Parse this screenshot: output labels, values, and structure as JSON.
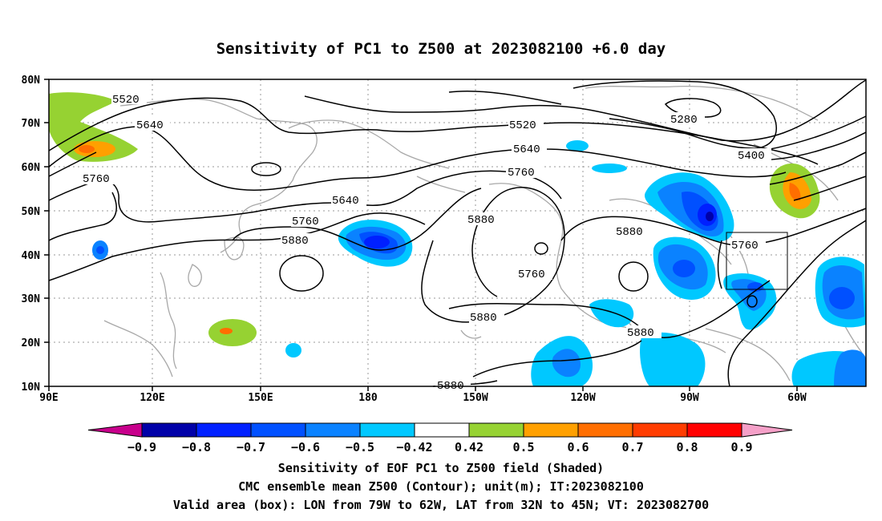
{
  "title": "Sensitivity of PC1 to Z500 at 2023082100 +6.0 day",
  "lat_labels": [
    "80N",
    "70N",
    "60N",
    "50N",
    "40N",
    "30N",
    "20N",
    "10N"
  ],
  "lon_labels": [
    "90E",
    "120E",
    "150E",
    "180",
    "150W",
    "120W",
    "90W",
    "60W"
  ],
  "contour_labels": {
    "c5520a": "5520",
    "c5520b": "5520",
    "c5640a": "5640",
    "c5640b": "5640",
    "c5640c": "5640",
    "c5760a": "5760",
    "c5760b": "5760",
    "c5760c": "5760",
    "c5760d": "5760",
    "c5760e": "5760",
    "c5880a": "5880",
    "c5880b": "5880",
    "c5880c": "5880",
    "c5880d": "5880",
    "c5880e": "5880",
    "c5880f": "5880",
    "c5280": "5280",
    "c5400": "5400"
  },
  "colorbar": {
    "labels": [
      "−0.9",
      "−0.8",
      "−0.7",
      "−0.6",
      "−0.5",
      "−0.42",
      "0.42",
      "0.5",
      "0.6",
      "0.7",
      "0.8",
      "0.9"
    ],
    "colors": [
      "#0000a8",
      "#0020ff",
      "#0050ff",
      "#0a82ff",
      "#00c8ff",
      "#ffffff",
      "#96d232",
      "#ffa000",
      "#ff6e00",
      "#ff3c00",
      "#ff0000"
    ],
    "low_tri_color": "#c8008c",
    "high_tri_color": "#f5a0c8"
  },
  "captions": {
    "line1": "Sensitivity of EOF PC1 to Z500 field (Shaded)",
    "line2": "CMC ensemble mean Z500 (Contour); unit(m); IT:2023082100",
    "line3": "Valid area (box): LON from 79W to 62W, LAT from 32N to 45N; VT: 2023082700"
  },
  "valid_box": {
    "lon_from": "79W",
    "lon_to": "62W",
    "lat_from": "32N",
    "lat_to": "45N"
  }
}
